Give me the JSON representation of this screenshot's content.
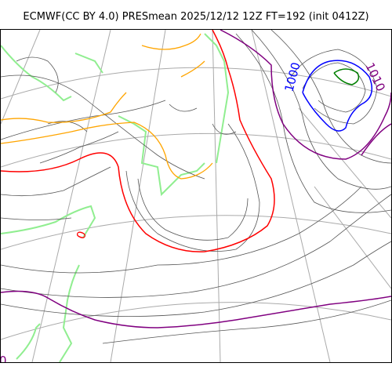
{
  "title": "ECMWF(CC BY 4.0) PRESmean 2025/12/12 12Z FT=192 (init 0412Z)",
  "contour_labels": {
    "l1000": "1000",
    "l1010": "1010",
    "l1020": "0",
    "l1010_lower": "0"
  },
  "colors": {
    "isobar": "#555555",
    "grid": "#aaaaaa",
    "coast": "#90ee90",
    "iso_1000": "#0000ff",
    "iso_1010": "#800080",
    "iso_1020": "#ff0000",
    "iso_orange": "#ffa500",
    "iso_green": "#008000"
  }
}
